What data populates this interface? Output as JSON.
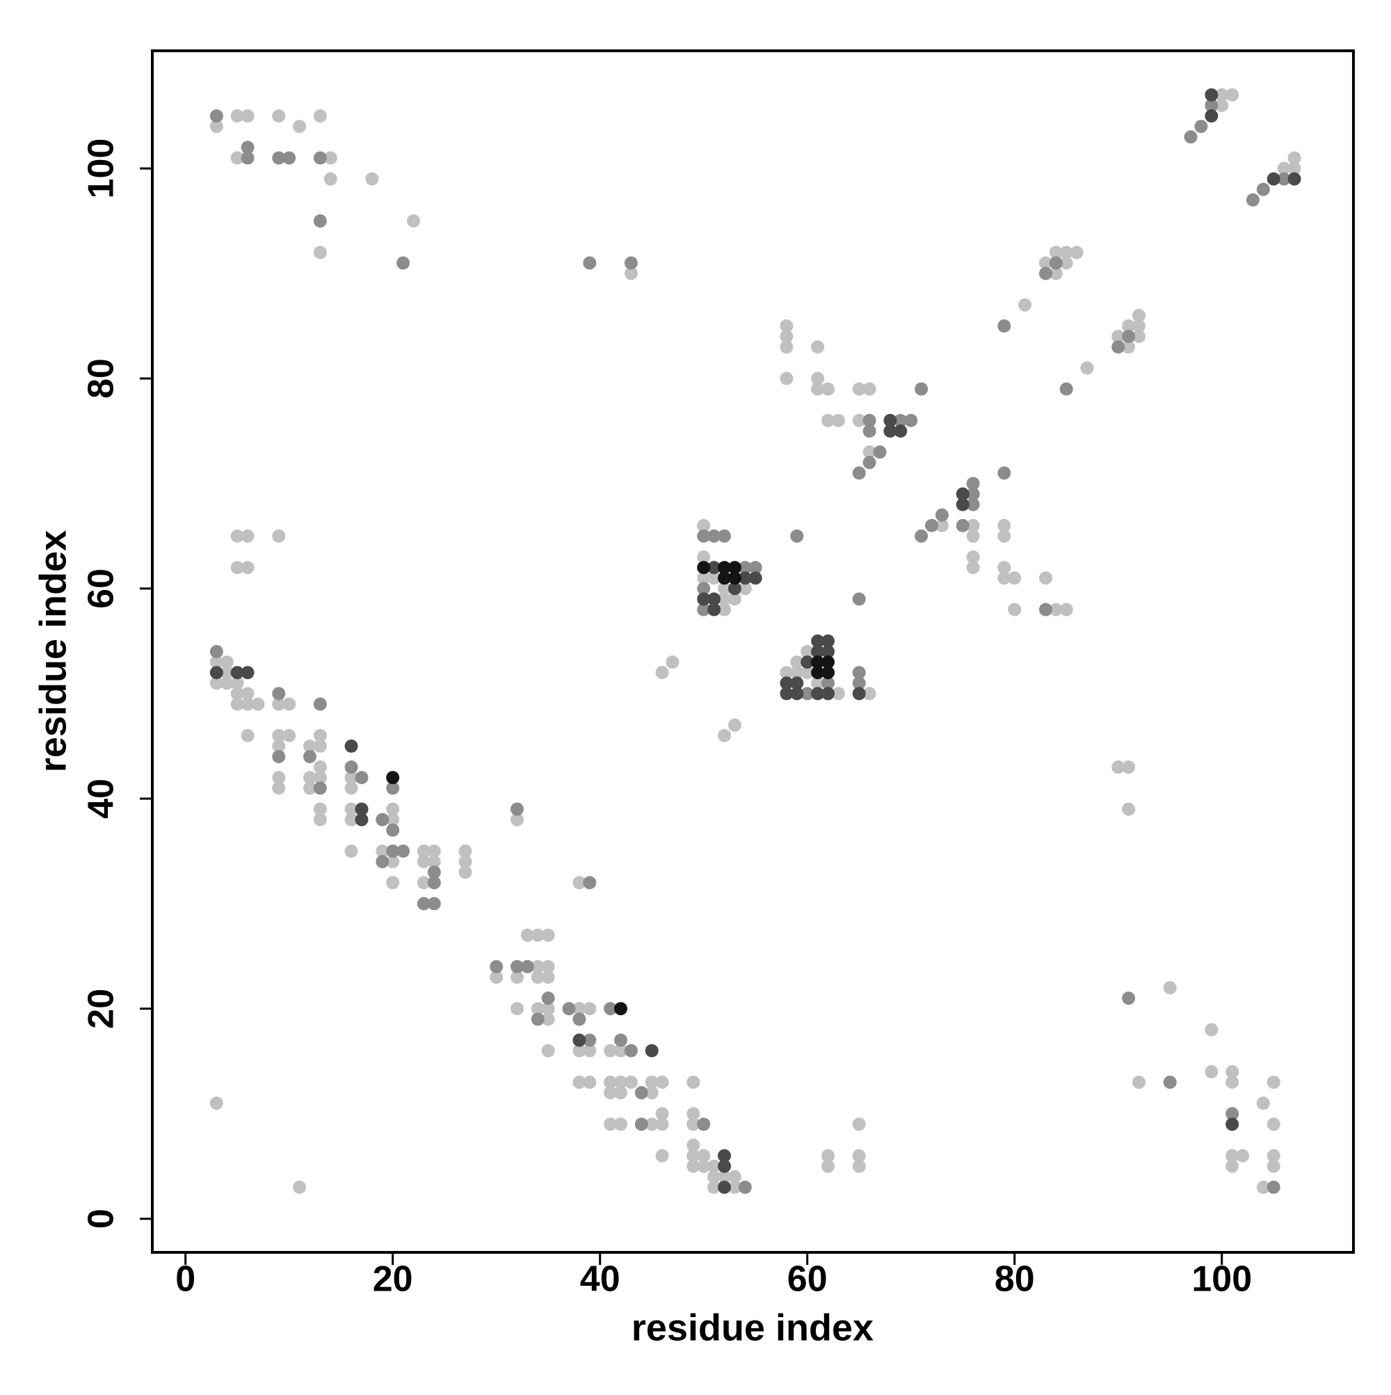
{
  "chart_data": {
    "type": "scatter",
    "xlabel": "residue index",
    "ylabel": "residue index",
    "xlim": [
      -3.2,
      112.7
    ],
    "ylim": [
      -3.2,
      111.2
    ],
    "xticks": [
      0,
      20,
      40,
      60,
      80,
      100
    ],
    "yticks": [
      0,
      20,
      40,
      60,
      80,
      100
    ],
    "series": [
      {
        "color": "#c0c0c0",
        "x": [
          3,
          5,
          6,
          9,
          13,
          11,
          5,
          14,
          14,
          18,
          22,
          13,
          43,
          100,
          101,
          100,
          107,
          106,
          107,
          84,
          85,
          86,
          83,
          85,
          84,
          81,
          92,
          91,
          92,
          90,
          92,
          91,
          87,
          58,
          58,
          58,
          61,
          58,
          61,
          61,
          62,
          65,
          66,
          62,
          63,
          65,
          66,
          73,
          76,
          79,
          76,
          79,
          76,
          76,
          79,
          79,
          80,
          83,
          80,
          84,
          85,
          50,
          50,
          50,
          51,
          52,
          54,
          52,
          53,
          52,
          60,
          59,
          58,
          59,
          60,
          61,
          63,
          66,
          46,
          47,
          52,
          53,
          5,
          6,
          9,
          5,
          6,
          3,
          4,
          4,
          3,
          4,
          5,
          5,
          6,
          5,
          6,
          7,
          9,
          10,
          6,
          9,
          10,
          13,
          9,
          12,
          13,
          13,
          9,
          12,
          13,
          16,
          9,
          12,
          16,
          13,
          16,
          20,
          13,
          16,
          20,
          16,
          19,
          23,
          24,
          27,
          20,
          23,
          24,
          27,
          27,
          20,
          23,
          32,
          38,
          33,
          34,
          35,
          34,
          35,
          30,
          32,
          34,
          35,
          32,
          34,
          35,
          38,
          39,
          35,
          35,
          38,
          39,
          41,
          42,
          38,
          39,
          41,
          42,
          43,
          45,
          46,
          49,
          41,
          42,
          45,
          46,
          49,
          41,
          42,
          45,
          46,
          49,
          46,
          49,
          49,
          50,
          49,
          50,
          51,
          51,
          52,
          53,
          51,
          53,
          11,
          3,
          62,
          62,
          65,
          65,
          65,
          90,
          91,
          91,
          95,
          92,
          99,
          99,
          101,
          101,
          105,
          104,
          105,
          101,
          102,
          105,
          101,
          105,
          104
        ],
        "values": [
          104,
          105,
          105,
          105,
          105,
          104,
          101,
          101,
          99,
          99,
          95,
          92,
          90,
          107,
          107,
          106,
          101,
          100,
          100,
          92,
          92,
          92,
          91,
          91,
          90,
          87,
          86,
          85,
          85,
          84,
          84,
          83,
          81,
          85,
          84,
          83,
          83,
          80,
          80,
          79,
          79,
          79,
          79,
          76,
          76,
          76,
          73,
          66,
          66,
          66,
          65,
          65,
          63,
          62,
          62,
          61,
          61,
          61,
          58,
          58,
          58,
          66,
          63,
          61,
          61,
          60,
          60,
          59,
          59,
          58,
          54,
          53,
          52,
          52,
          52,
          51,
          50,
          50,
          52,
          53,
          46,
          47,
          65,
          65,
          65,
          62,
          62,
          53,
          53,
          52,
          51,
          51,
          51,
          50,
          50,
          49,
          49,
          49,
          49,
          49,
          46,
          46,
          46,
          46,
          45,
          45,
          45,
          43,
          42,
          42,
          42,
          42,
          41,
          41,
          41,
          39,
          39,
          39,
          38,
          38,
          38,
          35,
          35,
          35,
          35,
          35,
          34,
          34,
          34,
          34,
          33,
          32,
          32,
          38,
          32,
          27,
          27,
          27,
          24,
          24,
          23,
          23,
          23,
          23,
          20,
          20,
          20,
          20,
          20,
          19,
          16,
          16,
          16,
          16,
          16,
          13,
          13,
          13,
          13,
          13,
          13,
          13,
          13,
          12,
          12,
          12,
          10,
          10,
          9,
          9,
          9,
          9,
          9,
          6,
          7,
          6,
          6,
          5,
          5,
          5,
          4,
          4,
          4,
          3,
          3,
          3,
          11,
          6,
          5,
          6,
          5,
          9,
          43,
          43,
          39,
          22,
          13,
          18,
          14,
          14,
          13,
          13,
          11,
          9,
          6,
          6,
          6,
          5,
          5,
          3
        ]
      },
      {
        "color": "#8c8c8c",
        "x": [
          3,
          6,
          6,
          9,
          10,
          13,
          13,
          21,
          39,
          43,
          99,
          98,
          97,
          106,
          104,
          103,
          84,
          83,
          79,
          91,
          90,
          85,
          71,
          66,
          69,
          70,
          66,
          67,
          66,
          65,
          79,
          76,
          76,
          76,
          73,
          72,
          75,
          71,
          83,
          50,
          51,
          52,
          59,
          54,
          55,
          50,
          50,
          65,
          65,
          62,
          65,
          60,
          3,
          9,
          13,
          9,
          12,
          16,
          17,
          13,
          20,
          19,
          20,
          20,
          21,
          19,
          24,
          24,
          23,
          24,
          32,
          39,
          30,
          32,
          33,
          35,
          37,
          41,
          34,
          38,
          39,
          42,
          43,
          44,
          44,
          50,
          54,
          91,
          95,
          101,
          105
        ],
        "values": [
          105,
          101,
          102,
          101,
          101,
          101,
          95,
          91,
          91,
          91,
          106,
          104,
          103,
          99,
          98,
          97,
          91,
          90,
          85,
          84,
          83,
          79,
          79,
          76,
          76,
          76,
          75,
          73,
          72,
          71,
          71,
          70,
          69,
          68,
          67,
          66,
          66,
          65,
          58,
          65,
          65,
          65,
          65,
          62,
          62,
          60,
          58,
          59,
          52,
          51,
          51,
          50,
          54,
          50,
          49,
          44,
          44,
          43,
          42,
          41,
          41,
          38,
          37,
          35,
          35,
          34,
          33,
          32,
          30,
          30,
          39,
          32,
          24,
          24,
          24,
          21,
          20,
          20,
          19,
          19,
          17,
          17,
          16,
          12,
          9,
          9,
          3,
          21,
          13,
          10,
          3
        ]
      },
      {
        "color": "#4a4a4a",
        "x": [
          99,
          99,
          105,
          107,
          68,
          68,
          69,
          75,
          75,
          51,
          54,
          55,
          53,
          50,
          51,
          51,
          62,
          61,
          61,
          62,
          60,
          58,
          59,
          58,
          59,
          61,
          62,
          65,
          3,
          5,
          6,
          16,
          17,
          17,
          38,
          45,
          52,
          52,
          52,
          101
        ],
        "values": [
          107,
          105,
          99,
          99,
          76,
          75,
          75,
          69,
          68,
          62,
          61,
          61,
          60,
          59,
          59,
          58,
          55,
          55,
          54,
          54,
          53,
          51,
          51,
          50,
          50,
          50,
          50,
          50,
          52,
          52,
          52,
          45,
          39,
          38,
          17,
          16,
          6,
          5,
          3,
          9
        ]
      },
      {
        "color": "#141414",
        "x": [
          50,
          52,
          53,
          52,
          53,
          61,
          62,
          61,
          62,
          20,
          42
        ],
        "values": [
          62,
          62,
          62,
          61,
          61,
          53,
          53,
          52,
          52,
          42,
          20
        ]
      }
    ]
  }
}
